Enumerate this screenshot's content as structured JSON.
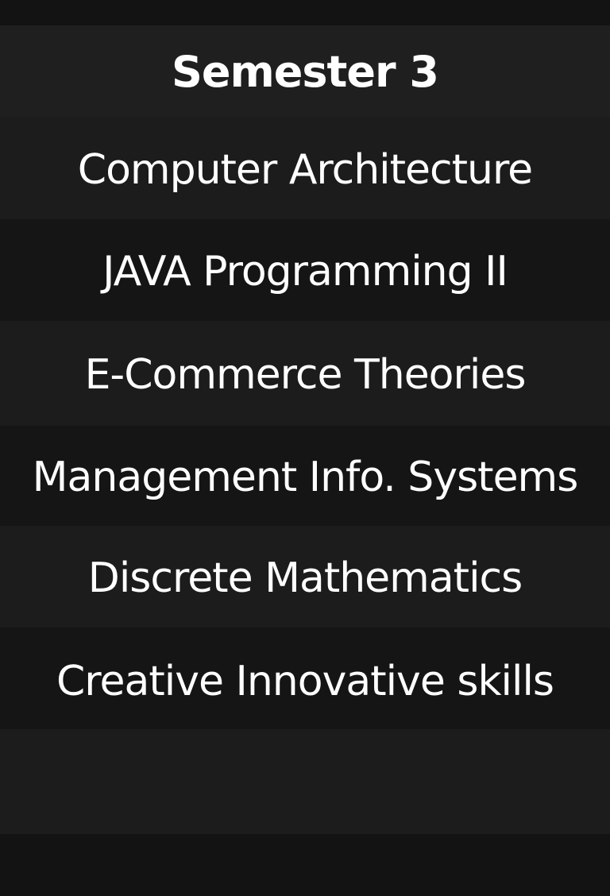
{
  "header": {
    "title": "Semester 3"
  },
  "courses": [
    {
      "label": "Computer Architecture"
    },
    {
      "label": "JAVA Programming II"
    },
    {
      "label": "E-Commerce Theories"
    },
    {
      "label": "Management Info. Systems"
    },
    {
      "label": "Discrete Mathematics"
    },
    {
      "label": "Creative Innovative skills"
    }
  ],
  "colors": {
    "background": "#131313",
    "header_band": "#1f1f1f",
    "light_band": "#1c1c1c",
    "dark_band": "#151515",
    "text": "#ffffff"
  }
}
